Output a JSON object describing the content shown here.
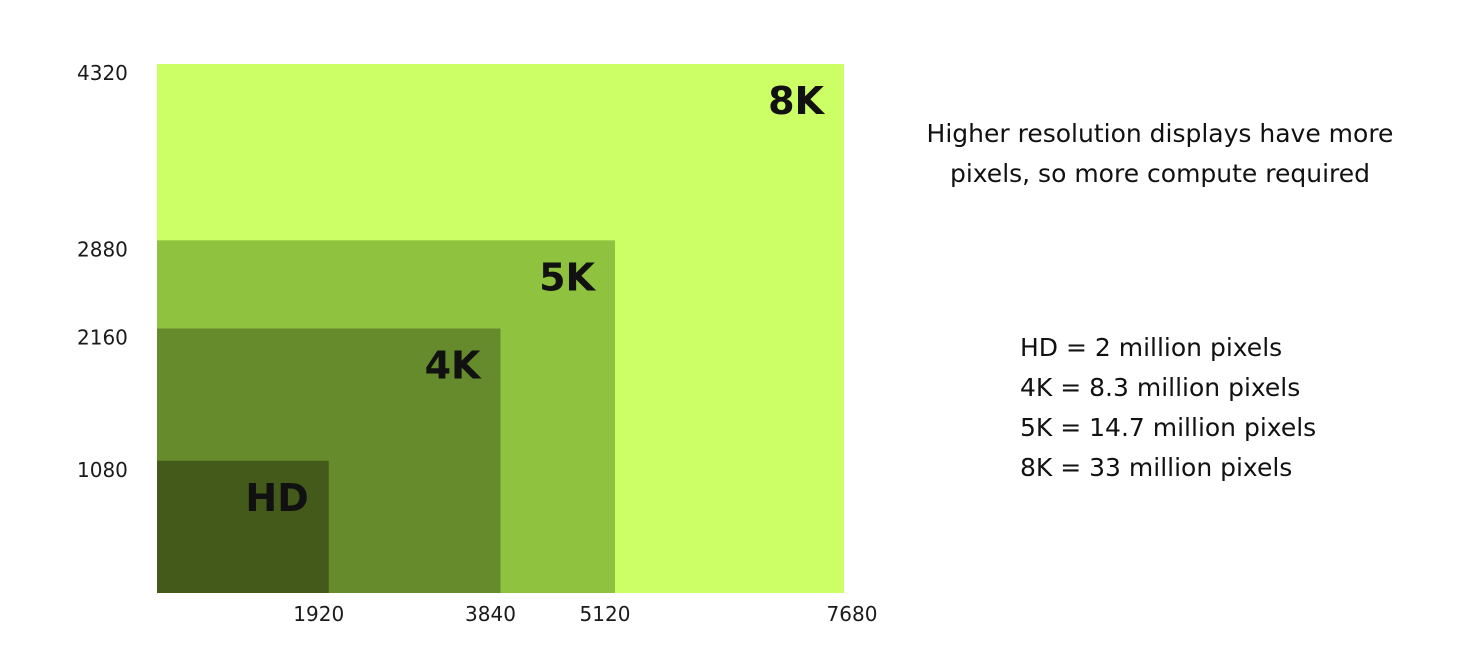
{
  "diagram": {
    "resolutions": [
      {
        "label": "8K",
        "width": 7680,
        "height": 4320,
        "color": "#ccff66"
      },
      {
        "label": "5K",
        "width": 5120,
        "height": 2880,
        "color": "#8fc23f"
      },
      {
        "label": "4K",
        "width": 3840,
        "height": 2160,
        "color": "#668b2c"
      },
      {
        "label": "HD",
        "width": 1920,
        "height": 1080,
        "color": "#445a1a"
      }
    ],
    "x_ticks": [
      "1920",
      "3840",
      "5120",
      "7680"
    ],
    "y_ticks": [
      "4320",
      "2880",
      "2160",
      "1080"
    ]
  },
  "caption": {
    "line1": "Higher resolution displays have more",
    "line2": "pixels, so more compute required"
  },
  "pixel_counts": [
    {
      "text": "HD = 2 million pixels"
    },
    {
      "text": "4K = 8.3 million pixels"
    },
    {
      "text": "5K = 14.7 million pixels"
    },
    {
      "text": "8K = 33 million pixels"
    }
  ]
}
